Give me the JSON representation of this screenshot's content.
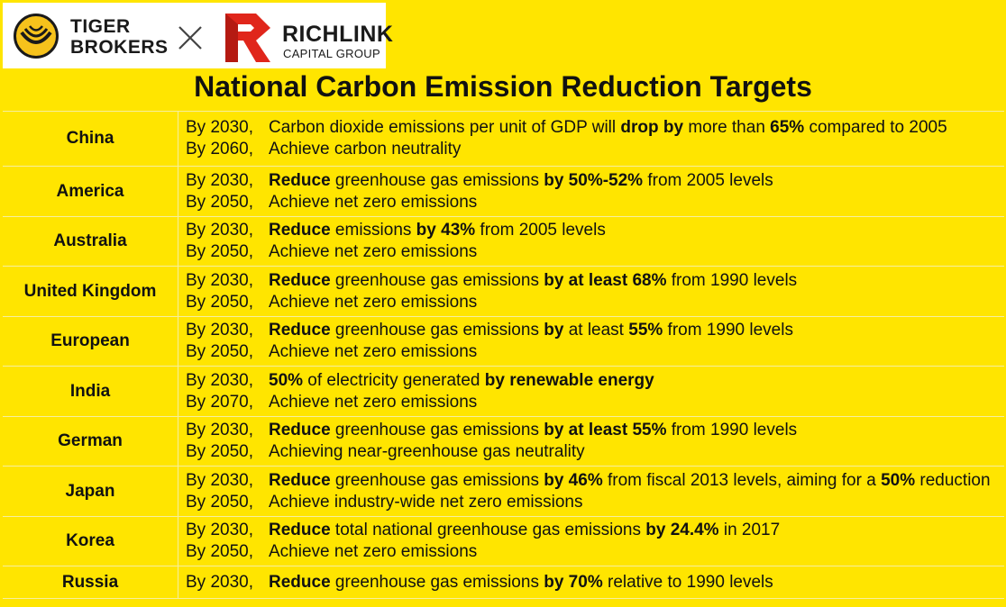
{
  "logos": {
    "left": "TIGER BROKERS",
    "left_line1": "TIGER",
    "left_line2": "BROKERS",
    "times": "×",
    "right_name": "RICHLINK",
    "right_sub": "CAPITAL GROUP"
  },
  "colors": {
    "background": "#FFE500",
    "grid": "#F6EFA0",
    "richlink_red": "#E0261B"
  },
  "title": "National Carbon Emission Reduction Targets",
  "rows": [
    {
      "country": "China",
      "height": 60,
      "lines": [
        {
          "year": "By 2030,",
          "parts": [
            [
              "Carbon dioxide emissions per unit of GDP will ",
              false
            ],
            [
              "drop by",
              true
            ],
            [
              " more than ",
              false
            ],
            [
              "65%",
              true
            ],
            [
              " compared to 2005",
              false
            ]
          ]
        },
        {
          "year": "By 2060,",
          "parts": [
            [
              "Achieve carbon neutrality",
              false
            ]
          ]
        }
      ]
    },
    {
      "country": "America",
      "height": 55,
      "lines": [
        {
          "year": "By 2030,",
          "parts": [
            [
              "Reduce",
              true
            ],
            [
              " greenhouse gas emissions ",
              false
            ],
            [
              "by 50%-52%",
              true
            ],
            [
              " from 2005 levels",
              false
            ]
          ]
        },
        {
          "year": "By 2050,",
          "parts": [
            [
              "Achieve net zero emissions",
              false
            ]
          ]
        }
      ]
    },
    {
      "country": "Australia",
      "height": 54,
      "lines": [
        {
          "year": "By 2030,",
          "parts": [
            [
              "Reduce",
              true
            ],
            [
              " emissions ",
              false
            ],
            [
              "by 43%",
              true
            ],
            [
              " from 2005 levels",
              false
            ]
          ]
        },
        {
          "year": "By 2050,",
          "parts": [
            [
              "Achieve net zero emissions",
              false
            ]
          ]
        }
      ]
    },
    {
      "country": "United Kingdom",
      "height": 55,
      "lines": [
        {
          "year": "By 2030,",
          "parts": [
            [
              "Reduce",
              true
            ],
            [
              " greenhouse gas emissions ",
              false
            ],
            [
              "by at least 68%",
              true
            ],
            [
              " from 1990 levels",
              false
            ]
          ]
        },
        {
          "year": "By 2050,",
          "parts": [
            [
              "Achieve net zero emissions",
              false
            ]
          ]
        }
      ]
    },
    {
      "country": "European",
      "height": 54,
      "lines": [
        {
          "year": "By 2030,",
          "parts": [
            [
              "Reduce",
              true
            ],
            [
              " greenhouse gas emissions ",
              false
            ],
            [
              "by",
              true
            ],
            [
              " at least ",
              false
            ],
            [
              "55%",
              true
            ],
            [
              " from 1990 levels",
              false
            ]
          ]
        },
        {
          "year": "By 2050,",
          "parts": [
            [
              "Achieve net zero emissions",
              false
            ]
          ]
        }
      ]
    },
    {
      "country": "India",
      "height": 55,
      "lines": [
        {
          "year": "By 2030,",
          "parts": [
            [
              "50%",
              true
            ],
            [
              " of electricity generated ",
              false
            ],
            [
              "by renewable energy",
              true
            ]
          ]
        },
        {
          "year": "By 2070,",
          "parts": [
            [
              "Achieve net zero emissions",
              false
            ]
          ]
        }
      ]
    },
    {
      "country": "German",
      "height": 54,
      "lines": [
        {
          "year": "By 2030,",
          "parts": [
            [
              "Reduce",
              true
            ],
            [
              " greenhouse gas emissions ",
              false
            ],
            [
              "by at least 55%",
              true
            ],
            [
              " from 1990 levels",
              false
            ]
          ]
        },
        {
          "year": "By 2050,",
          "parts": [
            [
              "Achieving near-greenhouse gas neutrality",
              false
            ]
          ]
        }
      ]
    },
    {
      "country": "Japan",
      "height": 55,
      "lines": [
        {
          "year": "By 2030,",
          "parts": [
            [
              "Reduce",
              true
            ],
            [
              " greenhouse gas emissions ",
              false
            ],
            [
              "by 46%",
              true
            ],
            [
              " from fiscal 2013 levels, aiming for a ",
              false
            ],
            [
              "50%",
              true
            ],
            [
              " reduction",
              false
            ]
          ]
        },
        {
          "year": "By 2050,",
          "parts": [
            [
              "Achieve industry-wide net zero emissions",
              false
            ]
          ]
        }
      ]
    },
    {
      "country": "Korea",
      "height": 54,
      "lines": [
        {
          "year": "By 2030,",
          "parts": [
            [
              "Reduce",
              true
            ],
            [
              " total national greenhouse gas emissions ",
              false
            ],
            [
              "by 24.4%",
              true
            ],
            [
              " in 2017",
              false
            ]
          ]
        },
        {
          "year": "By 2050,",
          "parts": [
            [
              "Achieve net zero emissions",
              false
            ]
          ]
        }
      ]
    },
    {
      "country": "Russia",
      "height": 35,
      "lines": [
        {
          "year": "By 2030,",
          "parts": [
            [
              "Reduce",
              true
            ],
            [
              " greenhouse gas emissions ",
              false
            ],
            [
              "by 70%",
              true
            ],
            [
              " relative to 1990 levels",
              false
            ]
          ]
        }
      ]
    }
  ]
}
